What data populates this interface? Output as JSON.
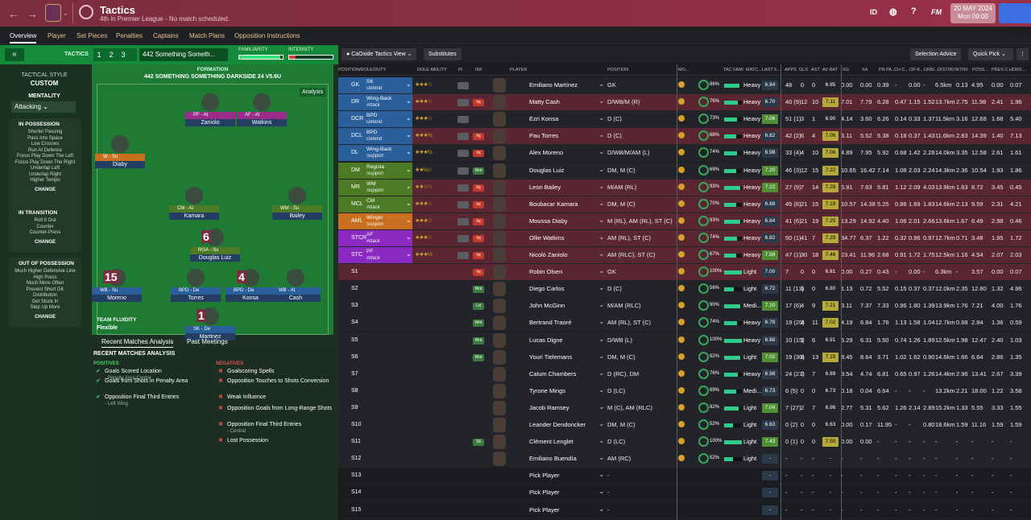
{
  "header": {
    "title": "Tactics",
    "subtitle": "4th in Premier League - No match scheduled.",
    "id_label": "ID",
    "fm_label": "FM",
    "date_line1": "20 MAY 2024",
    "date_line2": "Mon 09:00"
  },
  "tabs": [
    "Overview",
    "Player",
    "Set Pieces",
    "Penalties",
    "Captains",
    "Match Plans",
    "Opposition Instructions"
  ],
  "tactic_bar": {
    "label": "TACTICS",
    "numbers": "123",
    "name": "442 Something Someth...",
    "familiarity_label": "FAMILIARITY",
    "intensity_label": "INTENSITY",
    "familiarity": 0.95,
    "intensity": 0.15
  },
  "tactical_style": {
    "label": "TACTICAL STYLE",
    "value": "CUSTOM",
    "mentality_label": "MENTALITY",
    "mentality": "Attacking",
    "in_possession": {
      "title": "IN POSSESSION",
      "items": [
        "Shorter Passing",
        "Pass Into Space",
        "Low Crosses",
        "Run At Defence",
        "Focus Play Down The Left",
        "Focus Play Down The Right",
        "Underlap Left",
        "Underlap Right",
        "Higher Tempo"
      ]
    },
    "in_transition": {
      "title": "IN TRANSITION",
      "items": [
        "Roll It Out",
        "Counter",
        "Counter-Press"
      ]
    },
    "out_of_possession": {
      "title": "OUT OF POSSESSION",
      "items": [
        "Much Higher Defensive Line",
        "High Press",
        "Much More Often",
        "Prevent Short GK",
        "Distribution",
        "Get Stuck In",
        "Step Up More"
      ]
    },
    "change": "CHANGE"
  },
  "formation": {
    "label": "FORMATION",
    "name": "442 SOMETHING SOMETHING DARKSIDE 24 V5.6U",
    "analysis": "Analysis",
    "fluidity_label": "TEAM FLUIDITY",
    "fluidity": "Flexible",
    "players": [
      {
        "role": "PF - At",
        "name": "Zaniolo",
        "color": "#9b2b8a"
      },
      {
        "role": "AF - At",
        "name": "Watkins",
        "color": "#9b2b8a"
      },
      {
        "role": "W - Su",
        "name": "Diaby",
        "color": "#c8701f"
      },
      {
        "role": "CM - At",
        "name": "Kamara",
        "color": "#4d7a25"
      },
      {
        "role": "WM - Su",
        "name": "Bailey",
        "color": "#4d7a25"
      },
      {
        "role": "RGA - Su",
        "name": "Douglas Luiz",
        "color": "#4d7a25",
        "number": "6"
      },
      {
        "role": "WB - Su",
        "name": "Moreno",
        "color": "#2a5f9c",
        "number": "15"
      },
      {
        "role": "BPD - De",
        "name": "Torres",
        "color": "#2a5f9c"
      },
      {
        "role": "BPD - De",
        "name": "Konsa",
        "color": "#2a5f9c",
        "number": "4"
      },
      {
        "role": "WB - At",
        "name": "Cash",
        "color": "#2a5f9c"
      },
      {
        "role": "SK - De",
        "name": "Martinez",
        "color": "#2a5f9c",
        "number": "1"
      }
    ]
  },
  "recent": {
    "tabs": [
      "Recent Matches Analysis",
      "Past Meetings"
    ],
    "title": "RECENT MATCHES ANALYSIS",
    "positives_label": "POSITIVES",
    "negatives_label": "NEGATIVES",
    "positives": [
      {
        "t": "Goals Scored Location",
        "s": "- Penalty Area Centre"
      },
      {
        "t": "Goals from Shots in Penalty Area",
        "s": ""
      },
      {
        "t": "Opposition Final Third Entries",
        "s": "- Left Wing"
      }
    ],
    "negatives": [
      {
        "t": "Goalscoring Spells",
        "s": ""
      },
      {
        "t": "Opposition Touches to Shots Conversion",
        "s": ""
      },
      {
        "t": "Weak Influence",
        "s": ""
      },
      {
        "t": "Opposition Goals from Long-Range Shots",
        "s": ""
      },
      {
        "t": "Opposition Final Third Entries",
        "s": "- Central"
      },
      {
        "t": "Lost Possession",
        "s": ""
      }
    ]
  },
  "right_toolbar": {
    "view": "CaOxide Tactics View",
    "subs": "Substitutes",
    "advice": "Selection Advice",
    "pick": "Quick Pick"
  },
  "columns": [
    "POSITION/ROLE/DUTY",
    "ROLE ABILITY",
    "PI",
    "INF",
    "PLAYER",
    "POSITION",
    "MO...",
    "TAC FAMI",
    "MATC...",
    "LAST 5...",
    "APPS",
    "GLS",
    "AST",
    "AV RAT",
    "XG",
    "XA",
    "PR PA...",
    "CH C...",
    "OP-K...",
    "DRB/...",
    "DIST/90",
    "INT/90",
    "POSS...",
    "PRES C...",
    "HDRS..."
  ],
  "rows": [
    {
      "pos": "GK",
      "role": "SK",
      "duty": "Defend",
      "stars": "★★★☆",
      "inf": "",
      "player": "Emiliano Martínez",
      "position": "GK",
      "pct": "86%",
      "cond": "Heavy",
      "last": "6.84",
      "apps": "48",
      "gls": "0",
      "ast": "0",
      "av": "6.95",
      "xg": "0.00",
      "xa": "0.00",
      "prp": "0.39",
      "chc": "-",
      "opk": "0.00",
      "drb": "-",
      "dist": "6.5km",
      "int": "0.13",
      "poss": "4.95",
      "pres": "0.00",
      "hdr": "0.07",
      "bg": "#23242a",
      "pc": "#2a5f9c"
    },
    {
      "pos": "DR",
      "role": "Wing-Back",
      "duty": "Attack",
      "stars": "★★★☆",
      "inf": "Inj",
      "player": "Matty Cash",
      "position": "D/WB/M (R)",
      "pct": "76%",
      "cond": "Heavy",
      "last": "6.70",
      "apps": "40 (9)",
      "gls": "12",
      "ast": "10",
      "av": "7.11",
      "xg": "7.01",
      "xa": "7.79",
      "prp": "6.28",
      "chc": "0.47",
      "opk": "1.15",
      "drb": "1.52",
      "dist": "13.7km",
      "int": "2.75",
      "poss": "11.98",
      "pres": "2.41",
      "hdr": "1.96",
      "bg": "#5a2632",
      "pc": "#2a5f9c"
    },
    {
      "pos": "DCR",
      "role": "BPD",
      "duty": "Defend",
      "stars": "★★★☆",
      "inf": "",
      "player": "Ezri Konsa",
      "position": "D (C)",
      "pct": "73%",
      "cond": "Heavy",
      "last": "7.06",
      "apps": "51 (1)",
      "gls": "3",
      "ast": "1",
      "av": "6.90",
      "xg": "4.14",
      "xa": "3.60",
      "prp": "6.26",
      "chc": "0.14",
      "opk": "0.33",
      "drb": "1.37",
      "dist": "11.5km",
      "int": "3.16",
      "poss": "12.68",
      "pres": "1.68",
      "hdr": "5.40",
      "bg": "#23242a",
      "pc": "#2a5f9c"
    },
    {
      "pos": "DCL",
      "role": "BPD",
      "duty": "Defend",
      "stars": "★★★½",
      "inf": "Inj",
      "player": "Pau Torres",
      "position": "D (C)",
      "pct": "68%",
      "cond": "Heavy",
      "last": "6.82",
      "apps": "42 (2)",
      "gls": "6",
      "ast": "4",
      "av": "7.06",
      "xg": "6.11",
      "xa": "5.52",
      "prp": "5.38",
      "chc": "0.18",
      "opk": "0.37",
      "drb": "1.43",
      "dist": "11.6km",
      "int": "2.83",
      "poss": "14.39",
      "pres": "1.40",
      "hdr": "7.13",
      "bg": "#5a2632",
      "pc": "#2a5f9c"
    },
    {
      "pos": "DL",
      "role": "Wing-Back",
      "duty": "Support",
      "stars": "★★★½",
      "inf": "Inj",
      "player": "Alex Moreno",
      "position": "D/WB/M/AM (L)",
      "pct": "74%",
      "cond": "Heavy",
      "last": "6.98",
      "apps": "33 (4)",
      "gls": "4",
      "ast": "10",
      "av": "7.06",
      "xg": "4.89",
      "xa": "7.95",
      "prp": "5.92",
      "chc": "0.68",
      "opk": "1.42",
      "drb": "2.28",
      "dist": "14.0km",
      "int": "3.35",
      "poss": "12.58",
      "pres": "2.61",
      "hdr": "1.61",
      "bg": "#23242a",
      "pc": "#2a5f9c"
    },
    {
      "pos": "DM",
      "role": "Regista",
      "duty": "Support",
      "stars": "★★½☆",
      "inf": "Wnt",
      "player": "Douglas Luiz",
      "position": "DM, M (C)",
      "pct": "69%",
      "cond": "Heavy",
      "last": "7.20",
      "apps": "46 (3)",
      "gls": "12",
      "ast": "15",
      "av": "7.22",
      "xg": "10.65",
      "xa": "16.42",
      "prp": "7.14",
      "chc": "1.08",
      "opk": "2.03",
      "drb": "2.24",
      "dist": "14.3km",
      "int": "2.36",
      "poss": "10.54",
      "pres": "1.93",
      "hdr": "1.86",
      "bg": "#23242a",
      "pc": "#4d7a25"
    },
    {
      "pos": "MR",
      "role": "WM",
      "duty": "Support",
      "stars": "★★☆☆",
      "inf": "Inj",
      "player": "Leon Bailey",
      "position": "M/AM (RL)",
      "pct": "93%",
      "cond": "Heavy",
      "last": "7.22",
      "apps": "27 (9)",
      "gls": "7",
      "ast": "14",
      "av": "7.29",
      "xg": "5.91",
      "xa": "7.63",
      "prp": "5.81",
      "chc": "1.12",
      "opk": "2.09",
      "drb": "4.03",
      "dist": "13.9km",
      "int": "1.63",
      "poss": "8.72",
      "pres": "3.45",
      "hdr": "0.45",
      "bg": "#5a2632",
      "pc": "#4d7a25"
    },
    {
      "pos": "MCL",
      "role": "CM",
      "duty": "Attack",
      "stars": "★★★☆",
      "inf": "Inj",
      "player": "Boubacar Kamara",
      "position": "DM, M (C)",
      "pct": "70%",
      "cond": "Heavy",
      "last": "6.88",
      "apps": "45 (8)",
      "gls": "21",
      "ast": "15",
      "av": "7.19",
      "xg": "10.57",
      "xa": "14.38",
      "prp": "5.25",
      "chc": "0.86",
      "opk": "1.69",
      "drb": "1.83",
      "dist": "14.6km",
      "int": "2.13",
      "poss": "9.59",
      "pres": "2.31",
      "hdr": "4.21",
      "bg": "#5a2632",
      "pc": "#4d7a25"
    },
    {
      "pos": "AML",
      "role": "Winger",
      "duty": "Support",
      "stars": "★★★☆",
      "inf": "Inj",
      "player": "Moussa Diaby",
      "position": "M (RL), AM (RL), ST (C)",
      "pct": "93%",
      "cond": "Heavy",
      "last": "6.84",
      "apps": "41 (6)",
      "gls": "21",
      "ast": "19",
      "av": "7.25",
      "xg": "13.29",
      "xa": "14.92",
      "prp": "4.40",
      "chc": "1.06",
      "opk": "2.01",
      "drb": "2.66",
      "dist": "13.6km",
      "int": "1.67",
      "poss": "6.49",
      "pres": "2.98",
      "hdr": "0.46",
      "bg": "#5a2632",
      "pc": "#c8701f"
    },
    {
      "pos": "STCR",
      "role": "AF",
      "duty": "Attack",
      "stars": "★★★☆",
      "inf": "Inj",
      "player": "Ollie Watkins",
      "position": "AM (RL), ST (C)",
      "pct": "74%",
      "cond": "Heavy",
      "last": "6.82",
      "apps": "50 (1)",
      "gls": "41",
      "ast": "7",
      "av": "7.29",
      "xg": "34.77",
      "xa": "6.37",
      "prp": "1.22",
      "chc": "0.32",
      "opk": "0.96",
      "drb": "0.97",
      "dist": "12.7km",
      "int": "0.71",
      "poss": "3.48",
      "pres": "1.95",
      "hdr": "1.72",
      "bg": "#5a2632",
      "pc": "#8a2ac0"
    },
    {
      "pos": "STC",
      "role": "PF",
      "duty": "Attack",
      "stars": "★★★½",
      "inf": "Inj",
      "player": "Nicolò Zaniolo",
      "position": "AM (RLC), ST (C)",
      "pct": "67%",
      "cond": "Heavy",
      "last": "7.58",
      "apps": "47 (1)",
      "gls": "30",
      "ast": "18",
      "av": "7.46",
      "xg": "23.41",
      "xa": "11.96",
      "prp": "2.68",
      "chc": "0.91",
      "opk": "1.72",
      "drb": "1.75",
      "dist": "12.5km",
      "int": "1.16",
      "poss": "4.54",
      "pres": "2.07",
      "hdr": "2.03",
      "bg": "#5a2632",
      "pc": "#8a2ac0"
    },
    {
      "pos": "S1",
      "role": "",
      "duty": "",
      "stars": "",
      "inf": "Inj",
      "player": "Robin Olsen",
      "position": "GK",
      "pct": "100%",
      "cond": "Light",
      "last": "7.00",
      "apps": "7",
      "gls": "0",
      "ast": "0",
      "av": "6.81",
      "xg": "0.00",
      "xa": "0.27",
      "prp": "0.43",
      "chc": "-",
      "opk": "0.00",
      "drb": "-",
      "dist": "6.3km",
      "int": "-",
      "poss": "3.57",
      "pres": "0.00",
      "hdr": "0.07",
      "bg": "#5a2632",
      "pc": ""
    },
    {
      "pos": "S2",
      "role": "",
      "duty": "",
      "stars": "",
      "inf": "Wnt",
      "player": "Diego Carlos",
      "position": "D (C)",
      "pct": "56%",
      "cond": "Light",
      "last": "6.72",
      "apps": "11 (13)",
      "gls": "1",
      "ast": "0",
      "av": "6.80",
      "xg": "1.13",
      "xa": "0.72",
      "prp": "5.52",
      "chc": "0.15",
      "opk": "0.37",
      "drb": "0.37",
      "dist": "12.0km",
      "int": "2.35",
      "poss": "12.80",
      "pres": "1.32",
      "hdr": "4.96",
      "bg": "#23242a",
      "pc": ""
    },
    {
      "pos": "S3",
      "role": "",
      "duty": "",
      "stars": "",
      "inf": "Lst",
      "player": "John McGinn",
      "position": "M/AM (RLC)",
      "pct": "90%",
      "cond": "Medi...",
      "last": "7.10",
      "apps": "17 (6)",
      "gls": "4",
      "ast": "9",
      "av": "7.21",
      "xg": "3.11",
      "xa": "7.37",
      "prp": "7.33",
      "chc": "0.96",
      "opk": "1.80",
      "drb": "1.39",
      "dist": "13.9km",
      "int": "1.76",
      "poss": "7.21",
      "pres": "4.00",
      "hdr": "1.76",
      "bg": "#23242a",
      "pc": ""
    },
    {
      "pos": "S4",
      "role": "",
      "duty": "",
      "stars": "",
      "inf": "Wnt",
      "player": "Bertrand Traoré",
      "position": "AM (RL), ST (C)",
      "pct": "74%",
      "cond": "Heavy",
      "last": "6.78",
      "apps": "19 (20)",
      "gls": "4",
      "ast": "11",
      "av": "7.02",
      "xg": "4.19",
      "xa": "6.84",
      "prp": "1.76",
      "chc": "1.13",
      "opk": "1.58",
      "drb": "1.04",
      "dist": "12.7km",
      "int": "0.68",
      "poss": "2.84",
      "pres": "1.36",
      "hdr": "0.59",
      "bg": "#23242a",
      "pc": ""
    },
    {
      "pos": "S5",
      "role": "",
      "duty": "",
      "stars": "",
      "inf": "Wnt",
      "player": "Lucas Digne",
      "position": "D/WB (L)",
      "pct": "100%",
      "cond": "Heavy",
      "last": "6.88",
      "apps": "10 (15)",
      "gls": "1",
      "ast": "6",
      "av": "6.91",
      "xg": "5.29",
      "xa": "6.31",
      "prp": "5.50",
      "chc": "0.74",
      "opk": "1.26",
      "drb": "1.89",
      "dist": "12.5km",
      "int": "1.98",
      "poss": "12.47",
      "pres": "2.40",
      "hdr": "1.03",
      "bg": "#23242a",
      "pc": ""
    },
    {
      "pos": "S6",
      "role": "",
      "duty": "",
      "stars": "",
      "inf": "Wnt",
      "player": "Youri Tielemans",
      "position": "DM, M (C)",
      "pct": "92%",
      "cond": "Light",
      "last": "7.02",
      "apps": "19 (30)",
      "gls": "8",
      "ast": "13",
      "av": "7.15",
      "xg": "8.45",
      "xa": "8.64",
      "prp": "3.71",
      "chc": "1.02",
      "opk": "1.62",
      "drb": "0.90",
      "dist": "14.6km",
      "int": "1.66",
      "poss": "6.64",
      "pres": "2.86",
      "hdr": "1.35",
      "bg": "#23242a",
      "pc": ""
    },
    {
      "pos": "S7",
      "role": "",
      "duty": "",
      "stars": "",
      "inf": "",
      "player": "Calum Chambers",
      "position": "D (RC), DM",
      "pct": "76%",
      "cond": "Heavy",
      "last": "6.98",
      "apps": "24 (27)",
      "gls": "2",
      "ast": "7",
      "av": "6.89",
      "xg": "3.54",
      "xa": "4.74",
      "prp": "6.81",
      "chc": "0.65",
      "opk": "0.97",
      "drb": "1.26",
      "dist": "14.4km",
      "int": "2.96",
      "poss": "13.41",
      "pres": "2.67",
      "hdr": "3.39",
      "bg": "#23242a",
      "pc": ""
    },
    {
      "pos": "S8",
      "role": "",
      "duty": "",
      "stars": "",
      "inf": "",
      "player": "Tyrone Mings",
      "position": "D (LC)",
      "pct": "69%",
      "cond": "Medi...",
      "last": "6.73",
      "apps": "6 (5)",
      "gls": "0",
      "ast": "0",
      "av": "6.73",
      "xg": "0.18",
      "xa": "0.04",
      "prp": "6.64",
      "chc": "-",
      "opk": "-",
      "drb": "-",
      "dist": "13.2km",
      "int": "2.21",
      "poss": "18.00",
      "pres": "1.22",
      "hdr": "3.58",
      "bg": "#23242a",
      "pc": ""
    },
    {
      "pos": "S9",
      "role": "",
      "duty": "",
      "stars": "",
      "inf": "",
      "player": "Jacob Ramsey",
      "position": "M (C), AM (RLC)",
      "pct": "82%",
      "cond": "Light",
      "last": "7.04",
      "apps": "7 (27)",
      "gls": "2",
      "ast": "7",
      "av": "6.96",
      "xg": "2.77",
      "xa": "5.31",
      "prp": "5.62",
      "chc": "1.26",
      "opk": "2.14",
      "drb": "2.89",
      "dist": "15.2km",
      "int": "1.33",
      "poss": "5.55",
      "pres": "3.33",
      "hdr": "1.55",
      "bg": "#23242a",
      "pc": ""
    },
    {
      "pos": "S10",
      "role": "",
      "duty": "",
      "stars": "",
      "inf": "",
      "player": "Leander Dendoncker",
      "position": "DM, M (C)",
      "pct": "52%",
      "cond": "Light",
      "last": "6.63",
      "apps": "0 (2)",
      "gls": "0",
      "ast": "0",
      "av": "6.63",
      "xg": "0.00",
      "xa": "0.17",
      "prp": "11.95",
      "chc": "-",
      "opk": "-",
      "drb": "0.80",
      "dist": "18.6km",
      "int": "1.59",
      "poss": "11.16",
      "pres": "1.59",
      "hdr": "1.59",
      "bg": "#23242a",
      "pc": ""
    },
    {
      "pos": "S11",
      "role": "",
      "duty": "",
      "stars": "",
      "inf": "Slt",
      "player": "Clément Lenglet",
      "position": "D (LC)",
      "pct": "100%",
      "cond": "Light",
      "last": "7.43",
      "apps": "0 (1)",
      "gls": "0",
      "ast": "0",
      "av": "7.50",
      "xg": "0.00",
      "xa": "0.00",
      "prp": "-",
      "chc": "-",
      "opk": "-",
      "drb": "-",
      "dist": "-",
      "int": "-",
      "poss": "-",
      "pres": "-",
      "hdr": "-",
      "bg": "#23242a",
      "pc": ""
    },
    {
      "pos": "S12",
      "role": "",
      "duty": "",
      "stars": "",
      "inf": "",
      "player": "Emiliano Buendía",
      "position": "AM (RC)",
      "pct": "52%",
      "cond": "Light",
      "last": "-",
      "apps": "-",
      "gls": "-",
      "ast": "-",
      "av": "-",
      "xg": "-",
      "xa": "-",
      "prp": "-",
      "chc": "-",
      "opk": "-",
      "drb": "-",
      "dist": "-",
      "int": "-",
      "poss": "-",
      "pres": "-",
      "hdr": "-",
      "bg": "#23242a",
      "pc": ""
    },
    {
      "pos": "S13",
      "role": "",
      "duty": "",
      "stars": "",
      "inf": "",
      "player": "Pick Player",
      "position": "-",
      "pct": "",
      "cond": "",
      "last": "-",
      "apps": "-",
      "gls": "-",
      "ast": "-",
      "av": "-",
      "xg": "-",
      "xa": "-",
      "prp": "-",
      "chc": "-",
      "opk": "-",
      "drb": "-",
      "dist": "-",
      "int": "-",
      "poss": "-",
      "pres": "-",
      "hdr": "-",
      "bg": "#1b1c20",
      "pc": ""
    },
    {
      "pos": "S14",
      "role": "",
      "duty": "",
      "stars": "",
      "inf": "",
      "player": "Pick Player",
      "position": "-",
      "pct": "",
      "cond": "",
      "last": "-",
      "apps": "-",
      "gls": "-",
      "ast": "-",
      "av": "-",
      "xg": "-",
      "xa": "-",
      "prp": "-",
      "chc": "-",
      "opk": "-",
      "drb": "-",
      "dist": "-",
      "int": "-",
      "poss": "-",
      "pres": "-",
      "hdr": "-",
      "bg": "#1b1c20",
      "pc": ""
    },
    {
      "pos": "S15",
      "role": "",
      "duty": "",
      "stars": "",
      "inf": "",
      "player": "Pick Player",
      "position": "-",
      "pct": "",
      "cond": "",
      "last": "-",
      "apps": "-",
      "gls": "-",
      "ast": "-",
      "av": "-",
      "xg": "-",
      "xa": "-",
      "prp": "-",
      "chc": "-",
      "opk": "-",
      "drb": "-",
      "dist": "-",
      "int": "-",
      "poss": "-",
      "pres": "-",
      "hdr": "-",
      "bg": "#1b1c20",
      "pc": ""
    }
  ]
}
